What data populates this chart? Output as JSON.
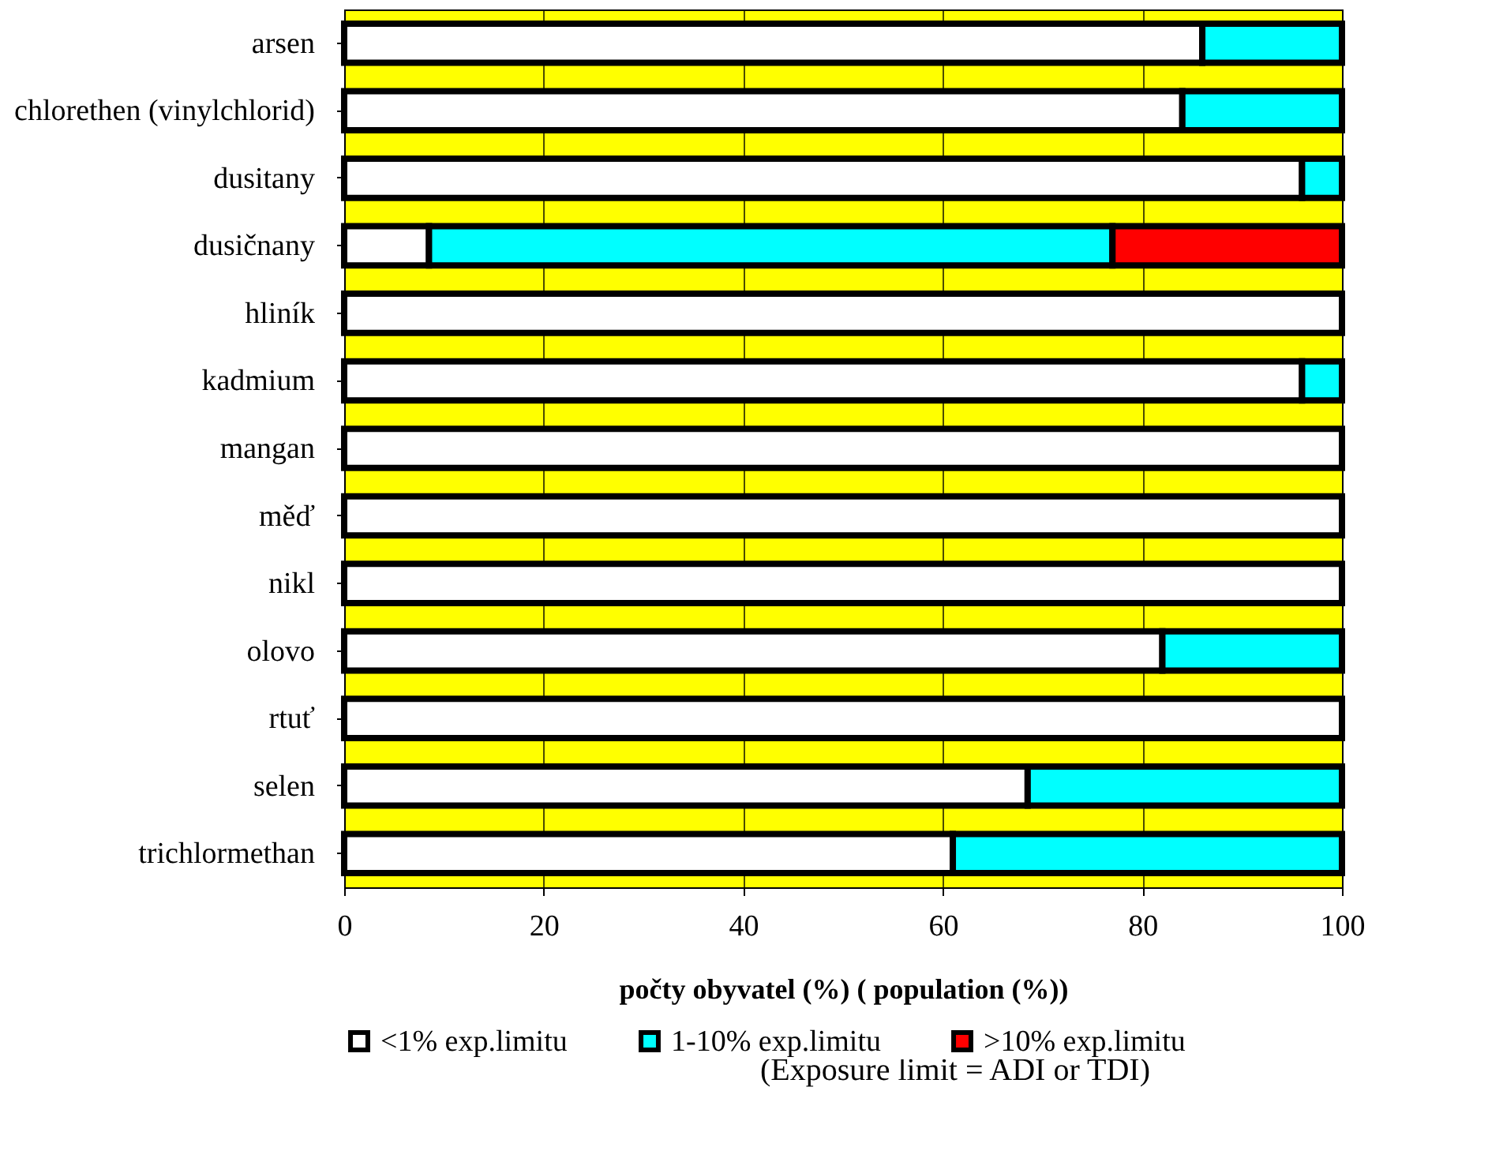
{
  "chart_data": {
    "type": "bar",
    "orientation": "horizontal",
    "stacked": true,
    "categories": [
      "arsen",
      "chlorethen (vinylchlorid)",
      "dusitany",
      "dusičnany",
      "hliník",
      "kadmium",
      "mangan",
      "měď",
      "nikl",
      "olovo",
      "rtuť",
      "selen",
      "trichlormethan"
    ],
    "series": [
      {
        "name": "<1% exp.limitu",
        "color": "#ffffff",
        "values": [
          86,
          84,
          96,
          8.5,
          100,
          96,
          100,
          100,
          100,
          82,
          100,
          68.5,
          61
        ]
      },
      {
        "name": "1-10% exp.limitu",
        "color": "#00ffff",
        "values": [
          14,
          16,
          4,
          68.5,
          null,
          4,
          null,
          null,
          null,
          18,
          null,
          31.5,
          39
        ]
      },
      {
        "name": ">10% exp.limitu",
        "color": "#ff0000",
        "values": [
          null,
          null,
          null,
          23,
          null,
          null,
          null,
          null,
          null,
          null,
          null,
          null,
          null
        ]
      }
    ],
    "xlabel": "počty obyvatel (%) ( population (%))",
    "xlim": [
      0,
      100
    ],
    "xticks": [
      0,
      20,
      40,
      60,
      80,
      100
    ],
    "grid": "x",
    "legend": "bottom",
    "annotations": [
      "(Exposure limit = ADI or TDI)"
    ]
  }
}
